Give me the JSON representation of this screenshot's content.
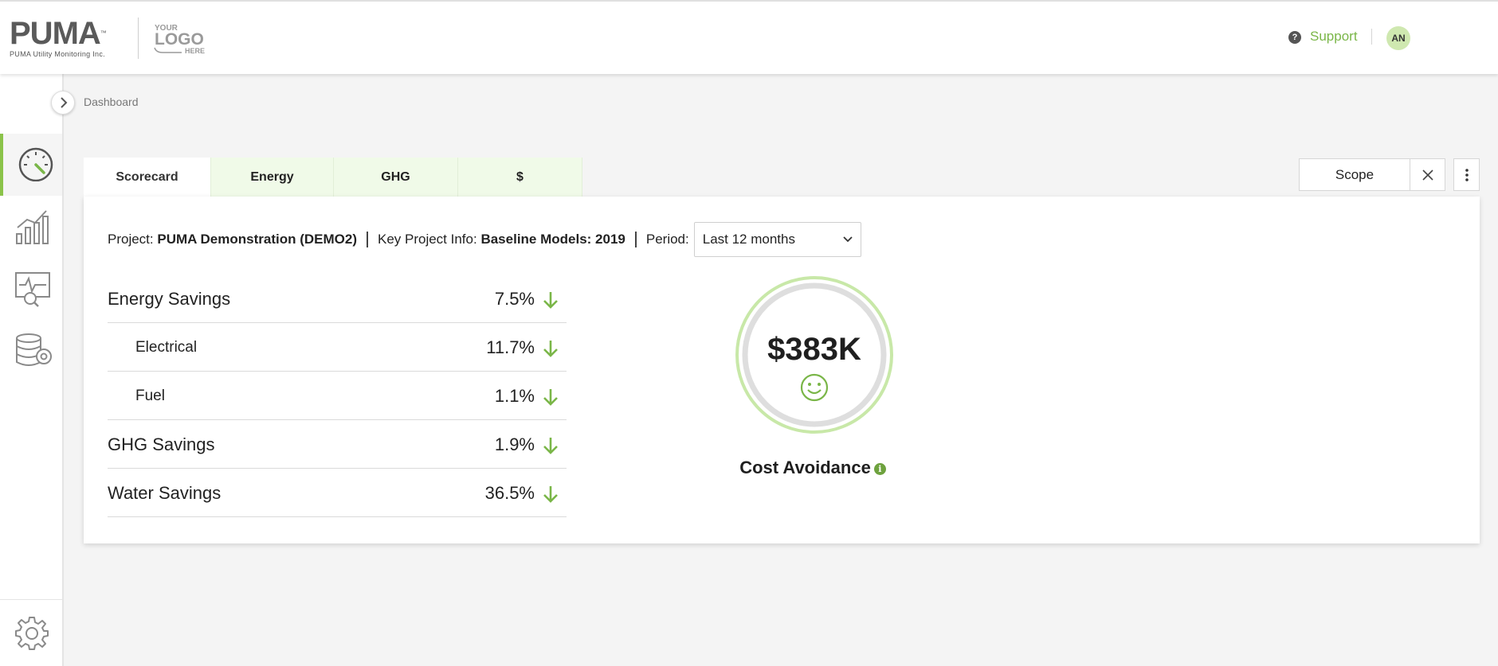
{
  "header": {
    "brand_name": "PUMA",
    "brand_tagline": "PUMA Utility Monitoring Inc.",
    "logo_placeholder": [
      "YOUR",
      "LOGO",
      "HERE"
    ],
    "support_label": "Support",
    "support_icon": "?",
    "avatar_initials": "AN"
  },
  "sidebar": {
    "items": [
      {
        "name": "dashboard",
        "icon": "speedometer-icon",
        "active": true
      },
      {
        "name": "analytics",
        "icon": "bar-chart-icon",
        "active": false
      },
      {
        "name": "monitoring",
        "icon": "monitor-search-icon",
        "active": false
      },
      {
        "name": "data",
        "icon": "database-gear-icon",
        "active": false
      }
    ],
    "settings_icon": "gear-icon"
  },
  "breadcrumb": "Dashboard",
  "tabs": [
    {
      "label": "Scorecard",
      "active": true
    },
    {
      "label": "Energy",
      "active": false
    },
    {
      "label": "GHG",
      "active": false
    },
    {
      "label": "$",
      "active": false
    }
  ],
  "scope": {
    "label": "Scope"
  },
  "info": {
    "project_label": "Project:",
    "project_value": "PUMA Demonstration (DEMO2)",
    "key_info_label": "Key Project Info:",
    "key_info_value": "Baseline Models: 2019",
    "period_label": "Period:",
    "period_value": "Last 12 months"
  },
  "metrics": [
    {
      "label": "Energy Savings",
      "value": "7.5%",
      "sub": false,
      "trend": "down"
    },
    {
      "label": "Electrical",
      "value": "11.7%",
      "sub": true,
      "trend": "down"
    },
    {
      "label": "Fuel",
      "value": "1.1%",
      "sub": true,
      "trend": "down"
    },
    {
      "label": "GHG Savings",
      "value": "1.9%",
      "sub": false,
      "trend": "down"
    },
    {
      "label": "Water Savings",
      "value": "36.5%",
      "sub": false,
      "trend": "down"
    }
  ],
  "cost_avoidance": {
    "value": "$383K",
    "label": "Cost Avoidance",
    "info_icon": "i",
    "mood": "smile-icon"
  },
  "colors": {
    "accent_green": "#8bc34a",
    "arrow_green": "#7ab648",
    "tab_bg": "#f0fae8"
  }
}
